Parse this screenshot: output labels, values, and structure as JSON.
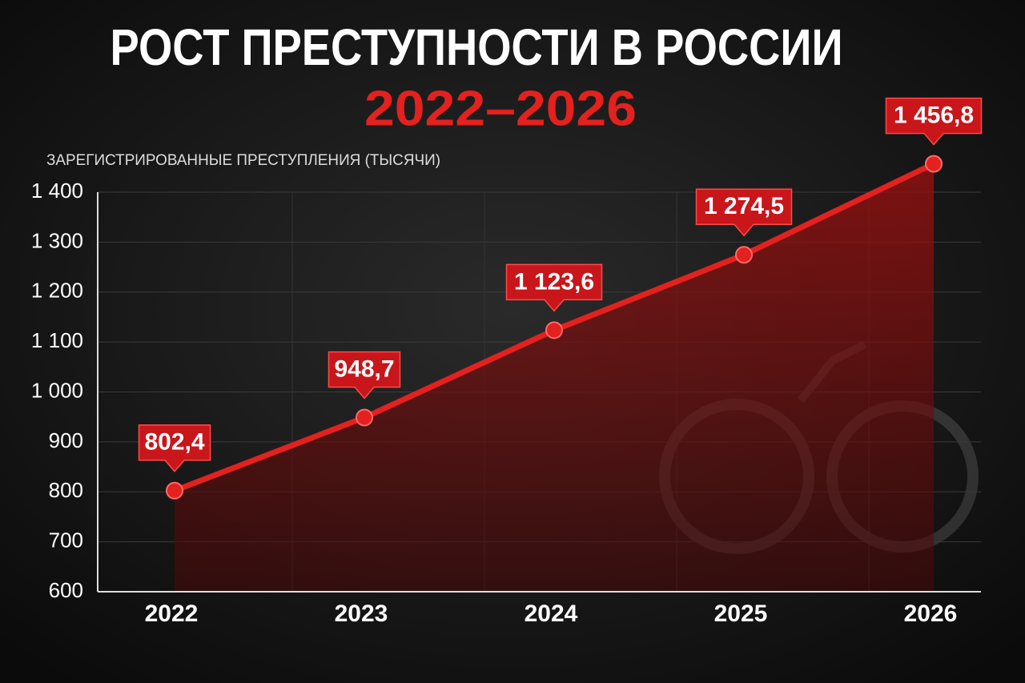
{
  "chart_data": {
    "type": "line",
    "title": "РОСТ ПРЕСТУПНОСТИ В РОССИИ",
    "subtitle": "2022–2026",
    "y_label": "ЗАРЕГИСТРИРОВАННЫЕ ПРЕСТУПЛЕНИЯ (ТЫСЯЧИ)",
    "categories": [
      "2022",
      "2023",
      "2024",
      "2025",
      "2026"
    ],
    "values": [
      802.4,
      948.7,
      1123.6,
      1274.5,
      1456.8
    ],
    "value_labels": [
      "802,4",
      "948,7",
      "1 123,6",
      "1 274,5",
      "1 456,8"
    ],
    "color": "#e3211f",
    "ylim": [
      600,
      1400
    ],
    "yticks": [
      600,
      700,
      800,
      900,
      {
        "value": 1000,
        "label": "1 000"
      },
      {
        "value": 1100,
        "label": "1 100"
      },
      {
        "value": 1200,
        "label": "1 200"
      },
      {
        "value": 1300,
        "label": "1 300"
      },
      {
        "value": 1400,
        "label": "1 400"
      }
    ],
    "grid": true
  }
}
